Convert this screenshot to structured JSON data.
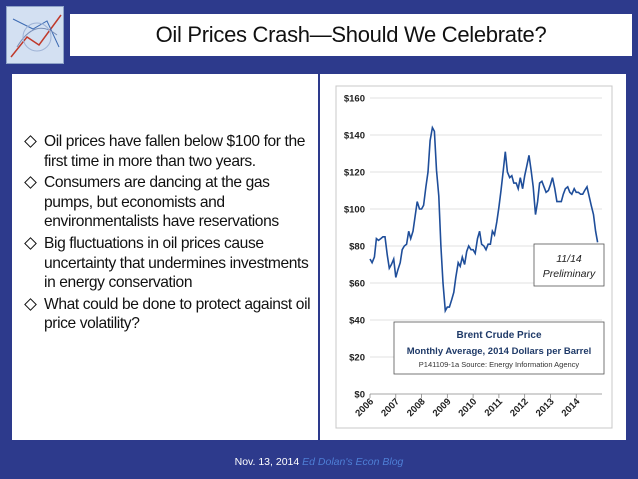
{
  "slide": {
    "title": "Oil Prices Crash—Should We Celebrate?",
    "bullets": [
      "Oil prices have fallen below $100 for the first time in more than two years.",
      "Consumers are dancing at the gas pumps, but economists and environmentalists have reservations",
      "Big fluctuations in oil prices cause uncertainty that undermines investments in energy conservation",
      "What could be done to protect against oil price volatility?"
    ],
    "footer_date": "Nov. 13, 2014",
    "footer_blog": "Ed Dolan's Econ Blog"
  },
  "colors": {
    "background": "#2d3a8c",
    "line": "#1f4e9a",
    "footer_link": "#4e7fd6"
  },
  "chart_data": {
    "type": "line",
    "annotation": "11/14\nPreliminary",
    "legend_title": "Brent Crude Price",
    "legend_subtitle": "Monthly Average, 2014  Dollars per Barrel",
    "legend_source": "P141109-1a Source: Energy Information Agency",
    "y_ticks": [
      "$0",
      "$20",
      "$40",
      "$60",
      "$80",
      "$100",
      "$120",
      "$140",
      "$160"
    ],
    "ylim": [
      0,
      160
    ],
    "x_ticks": [
      "2006",
      "2007",
      "2008",
      "2009",
      "2010",
      "2011",
      "2012",
      "2013",
      "2014"
    ],
    "xlim": [
      2006,
      2015
    ],
    "grid": true,
    "series": [
      {
        "values": [
          [
            2006.0,
            73
          ],
          [
            2006.08,
            71
          ],
          [
            2006.17,
            74
          ],
          [
            2006.25,
            84
          ],
          [
            2006.33,
            83
          ],
          [
            2006.42,
            84
          ],
          [
            2006.5,
            85
          ],
          [
            2006.58,
            85
          ],
          [
            2006.67,
            75
          ],
          [
            2006.75,
            68
          ],
          [
            2006.83,
            70
          ],
          [
            2006.92,
            73
          ],
          [
            2007.0,
            63
          ],
          [
            2007.08,
            67
          ],
          [
            2007.17,
            71
          ],
          [
            2007.25,
            78
          ],
          [
            2007.33,
            80
          ],
          [
            2007.42,
            81
          ],
          [
            2007.5,
            88
          ],
          [
            2007.58,
            84
          ],
          [
            2007.67,
            88
          ],
          [
            2007.75,
            96
          ],
          [
            2007.83,
            104
          ],
          [
            2007.92,
            100
          ],
          [
            2008.0,
            100
          ],
          [
            2008.08,
            102
          ],
          [
            2008.17,
            112
          ],
          [
            2008.25,
            120
          ],
          [
            2008.33,
            137
          ],
          [
            2008.42,
            144
          ],
          [
            2008.5,
            142
          ],
          [
            2008.58,
            121
          ],
          [
            2008.67,
            107
          ],
          [
            2008.75,
            80
          ],
          [
            2008.83,
            60
          ],
          [
            2008.92,
            45
          ],
          [
            2009.0,
            47
          ],
          [
            2009.08,
            47
          ],
          [
            2009.17,
            51
          ],
          [
            2009.25,
            55
          ],
          [
            2009.33,
            63
          ],
          [
            2009.42,
            71
          ],
          [
            2009.5,
            69
          ],
          [
            2009.58,
            74
          ],
          [
            2009.67,
            70
          ],
          [
            2009.75,
            77
          ],
          [
            2009.83,
            80
          ],
          [
            2009.92,
            78
          ],
          [
            2010.0,
            78
          ],
          [
            2010.08,
            76
          ],
          [
            2010.17,
            84
          ],
          [
            2010.25,
            88
          ],
          [
            2010.33,
            81
          ],
          [
            2010.42,
            80
          ],
          [
            2010.5,
            78
          ],
          [
            2010.58,
            81
          ],
          [
            2010.67,
            81
          ],
          [
            2010.75,
            88
          ],
          [
            2010.83,
            86
          ],
          [
            2010.92,
            93
          ],
          [
            2011.0,
            101
          ],
          [
            2011.08,
            110
          ],
          [
            2011.17,
            121
          ],
          [
            2011.25,
            131
          ],
          [
            2011.33,
            120
          ],
          [
            2011.42,
            117
          ],
          [
            2011.5,
            118
          ],
          [
            2011.58,
            114
          ],
          [
            2011.67,
            114
          ],
          [
            2011.75,
            111
          ],
          [
            2011.83,
            117
          ],
          [
            2011.92,
            111
          ],
          [
            2012.0,
            118
          ],
          [
            2012.08,
            123
          ],
          [
            2012.17,
            129
          ],
          [
            2012.25,
            121
          ],
          [
            2012.33,
            112
          ],
          [
            2012.42,
            97
          ],
          [
            2012.5,
            104
          ],
          [
            2012.58,
            114
          ],
          [
            2012.67,
            115
          ],
          [
            2012.75,
            112
          ],
          [
            2012.83,
            109
          ],
          [
            2012.92,
            110
          ],
          [
            2013.0,
            113
          ],
          [
            2013.08,
            117
          ],
          [
            2013.17,
            111
          ],
          [
            2013.25,
            104
          ],
          [
            2013.33,
            104
          ],
          [
            2013.42,
            104
          ],
          [
            2013.5,
            108
          ],
          [
            2013.58,
            111
          ],
          [
            2013.67,
            112
          ],
          [
            2013.75,
            109
          ],
          [
            2013.83,
            108
          ],
          [
            2013.92,
            111
          ],
          [
            2014.0,
            109
          ],
          [
            2014.08,
            109
          ],
          [
            2014.17,
            108
          ],
          [
            2014.25,
            108
          ],
          [
            2014.33,
            110
          ],
          [
            2014.42,
            112
          ],
          [
            2014.5,
            107
          ],
          [
            2014.58,
            102
          ],
          [
            2014.67,
            97
          ],
          [
            2014.75,
            88
          ],
          [
            2014.83,
            82
          ]
        ]
      }
    ]
  }
}
